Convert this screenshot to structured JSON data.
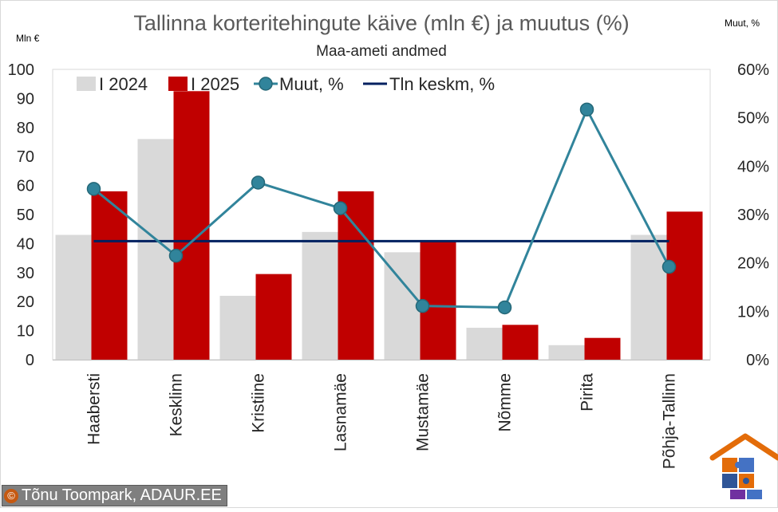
{
  "chart_data": {
    "type": "bar",
    "title": "Tallinna korteritehingute käive (mln €) ja muutus (%)",
    "subtitle": "Maa-ameti andmed",
    "ylabel_left": "Mln €",
    "ylabel_right": "Muut, %",
    "categories": [
      "Haabersti",
      "Kesklinn",
      "Kristiine",
      "Lasnamäe",
      "Mustamäe",
      "Nõmme",
      "Pirita",
      "Põhja-Tallinn"
    ],
    "series": [
      {
        "name": "I 2024",
        "kind": "bar",
        "axis": "left",
        "color": "#d9d9d9",
        "values": [
          43,
          76,
          22,
          44,
          37,
          11,
          5,
          43
        ]
      },
      {
        "name": "I 2025",
        "kind": "bar",
        "axis": "left",
        "color": "#c00000",
        "values": [
          58,
          92.5,
          29.5,
          58,
          41,
          12,
          7.5,
          51
        ]
      },
      {
        "name": "Muut, %",
        "kind": "line-marker",
        "axis": "right",
        "color": "#31849b",
        "values": [
          35.3,
          21.5,
          36.6,
          31.3,
          11.1,
          10.8,
          51.7,
          19.2
        ]
      },
      {
        "name": "Tln keskm, %",
        "kind": "line",
        "axis": "right",
        "color": "#002060",
        "values": [
          24.5,
          24.5,
          24.5,
          24.5,
          24.5,
          24.5,
          24.5,
          24.5
        ]
      }
    ],
    "ylim_left": [
      0,
      100
    ],
    "ylim_right": [
      0,
      60
    ],
    "yticks_left": [
      "0",
      "10",
      "20",
      "30",
      "40",
      "50",
      "60",
      "70",
      "80",
      "90",
      "100"
    ],
    "yticks_right": [
      "0%",
      "10%",
      "20%",
      "30%",
      "40%",
      "50%",
      "60%"
    ],
    "grid": false,
    "legend_position": "top-left"
  },
  "credit": {
    "symbol": "©",
    "text": "Tõnu Toompark, ADAUR.EE"
  }
}
